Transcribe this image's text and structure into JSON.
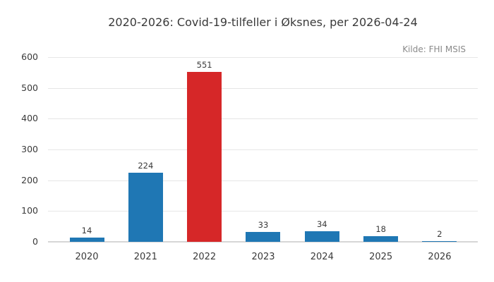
{
  "title": "2020-2026: Covid-19-tilfeller i Øksnes, per 2026-04-24",
  "source": "Kilde: FHI MSIS",
  "colors": {
    "bar": "#1f77b4",
    "highlight": "#d62728",
    "grid": "#e6e6e6",
    "zero_line": "#d6d6d6",
    "text": "#3a3a3a",
    "source_text": "#8a8a8a",
    "background": "#ffffff"
  },
  "chart_data": {
    "type": "bar",
    "categories": [
      "2020",
      "2021",
      "2022",
      "2023",
      "2024",
      "2025",
      "2026"
    ],
    "values": [
      14,
      224,
      551,
      33,
      34,
      18,
      2
    ],
    "title": "2020-2026: Covid-19-tilfeller i Øksnes, per 2026-04-24",
    "annotation": "Kilde: FHI MSIS",
    "xlabel": "",
    "ylabel": "",
    "ylim": [
      0,
      600
    ],
    "yticks": [
      0,
      100,
      200,
      300,
      400,
      500,
      600
    ],
    "grid": true,
    "legend": false,
    "value_labels": true,
    "highlight_index": 2,
    "bar_color": "#1f77b4",
    "highlight_color": "#d62728"
  }
}
